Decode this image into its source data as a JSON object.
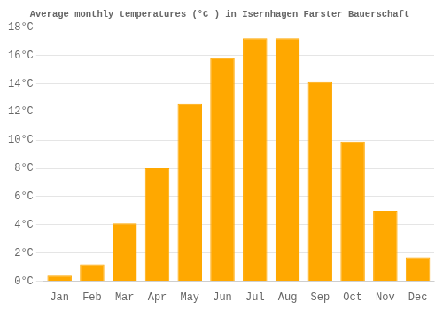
{
  "chart_data": {
    "type": "bar",
    "title": "Average monthly temperatures (°C ) in Isernhagen Farster Bauerschaft",
    "categories": [
      "Jan",
      "Feb",
      "Mar",
      "Apr",
      "May",
      "Jun",
      "Jul",
      "Aug",
      "Sep",
      "Oct",
      "Nov",
      "Dec"
    ],
    "values": [
      0.4,
      1.2,
      4.1,
      8.0,
      12.6,
      15.8,
      17.2,
      17.2,
      14.1,
      9.9,
      5.0,
      1.7
    ],
    "color": "#FFA800",
    "ylim": [
      0,
      18
    ],
    "yticks": [
      {
        "value": 0,
        "label": "0°C"
      },
      {
        "value": 2,
        "label": "2°C"
      },
      {
        "value": 4,
        "label": "4°C"
      },
      {
        "value": 6,
        "label": "6°C"
      },
      {
        "value": 8,
        "label": "8°C"
      },
      {
        "value": 10,
        "label": "10°C"
      },
      {
        "value": 12,
        "label": "12°C"
      },
      {
        "value": 14,
        "label": "14°C"
      },
      {
        "value": 16,
        "label": "16°C"
      },
      {
        "value": 18,
        "label": "18°C"
      }
    ],
    "grid": true
  }
}
